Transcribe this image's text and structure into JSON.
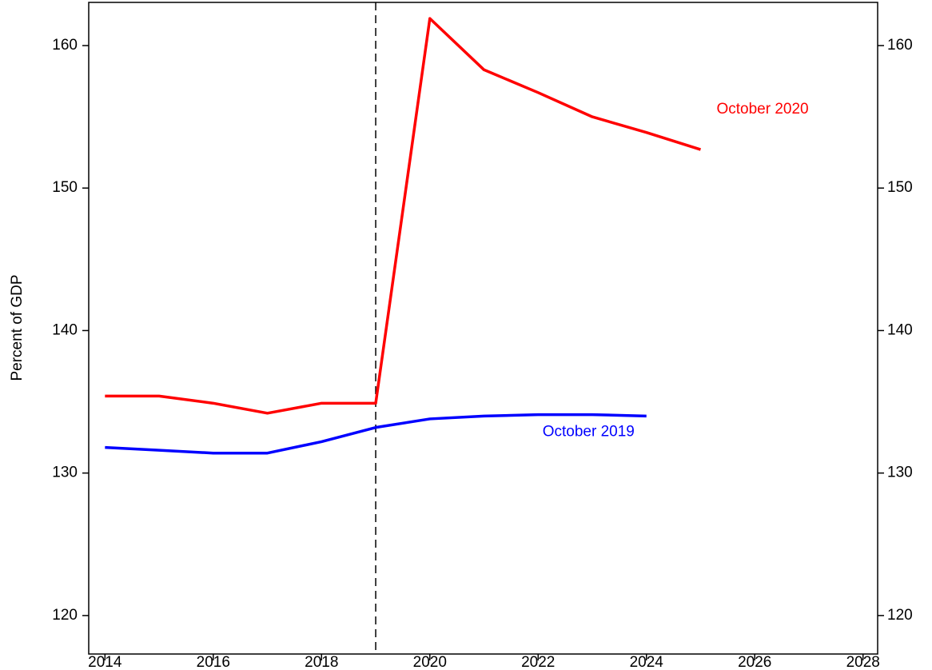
{
  "chart_data": {
    "type": "line",
    "y_label": "Percent of GDP",
    "x": [
      2014,
      2015,
      2016,
      2017,
      2018,
      2019,
      2020,
      2021,
      2022,
      2023,
      2024,
      2025
    ],
    "series": [
      {
        "name": "October 2020",
        "color": "#ff0000",
        "values": [
          135.4,
          135.4,
          134.9,
          134.2,
          134.9,
          134.9,
          161.9,
          158.3,
          156.7,
          155.0,
          153.9,
          152.7
        ]
      },
      {
        "name": "October 2019",
        "color": "#0000ff",
        "values": [
          131.8,
          131.6,
          131.4,
          131.4,
          132.2,
          133.2,
          133.8,
          134.0,
          134.1,
          134.1,
          134.0,
          null
        ]
      }
    ],
    "reference_line": 2019,
    "xlim": [
      2013.7,
      2028.27
    ],
    "xticks": [
      2014,
      2016,
      2018,
      2020,
      2022,
      2024,
      2026,
      2028
    ],
    "ylim": [
      117.3,
      163.03
    ],
    "yticks": [
      120,
      130,
      140,
      150,
      160
    ],
    "y2lim": [
      117.3,
      163.03
    ],
    "y2ticks": [
      120,
      130,
      140,
      150,
      160
    ],
    "grid": false
  }
}
